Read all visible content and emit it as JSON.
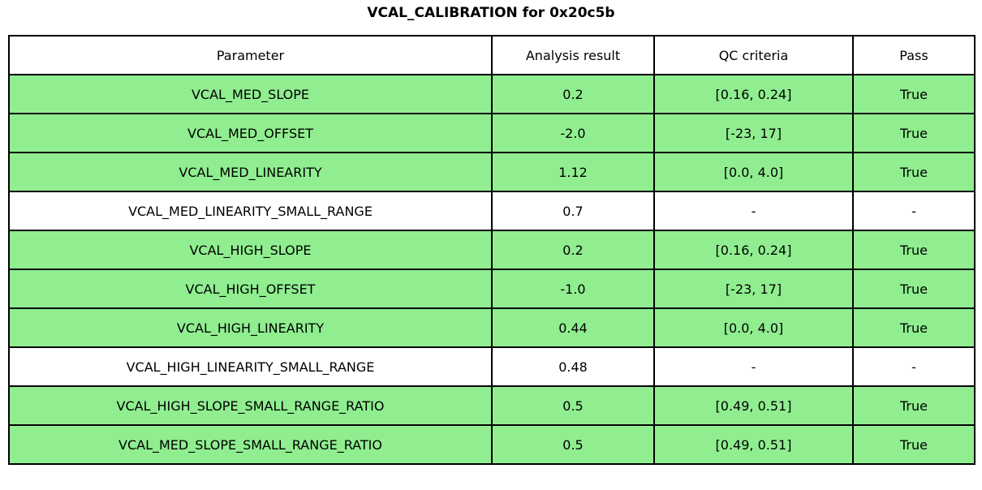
{
  "colors": {
    "pass_row_bg": "#90ee90",
    "na_row_bg": "#ffffff",
    "border": "#000000",
    "text": "#000000"
  },
  "chart_data": {
    "type": "table",
    "title": "VCAL_CALIBRATION for 0x20c5b",
    "columns": [
      "Parameter",
      "Analysis result",
      "QC criteria",
      "Pass"
    ],
    "rows": [
      [
        "VCAL_MED_SLOPE",
        "0.2",
        "[0.16, 0.24]",
        "True"
      ],
      [
        "VCAL_MED_OFFSET",
        "-2.0",
        "[-23, 17]",
        "True"
      ],
      [
        "VCAL_MED_LINEARITY",
        "1.12",
        "[0.0, 4.0]",
        "True"
      ],
      [
        "VCAL_MED_LINEARITY_SMALL_RANGE",
        "0.7",
        "-",
        "-"
      ],
      [
        "VCAL_HIGH_SLOPE",
        "0.2",
        "[0.16, 0.24]",
        "True"
      ],
      [
        "VCAL_HIGH_OFFSET",
        "-1.0",
        "[-23, 17]",
        "True"
      ],
      [
        "VCAL_HIGH_LINEARITY",
        "0.44",
        "[0.0, 4.0]",
        "True"
      ],
      [
        "VCAL_HIGH_LINEARITY_SMALL_RANGE",
        "0.48",
        "-",
        "-"
      ],
      [
        "VCAL_HIGH_SLOPE_SMALL_RANGE_RATIO",
        "0.5",
        "[0.49, 0.51]",
        "True"
      ],
      [
        "VCAL_MED_SLOPE_SMALL_RANGE_RATIO",
        "0.5",
        "[0.49, 0.51]",
        "True"
      ]
    ],
    "row_highlight": [
      true,
      true,
      true,
      false,
      true,
      true,
      true,
      false,
      true,
      true
    ],
    "layout": {
      "grid": "full-borders",
      "highlight_meaning": "green = QC passed, white = no QC criteria applied"
    }
  }
}
